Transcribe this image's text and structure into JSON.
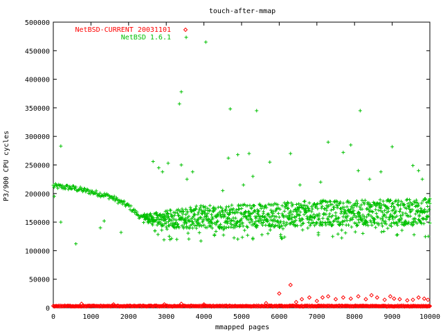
{
  "chart_data": {
    "type": "scatter",
    "title": "touch-after-mmap",
    "xlabel": "mmapped pages",
    "ylabel": "P3/900 CPU cycles",
    "xlim": [
      0,
      10000
    ],
    "ylim": [
      0,
      500000
    ],
    "x_ticks": [
      0,
      1000,
      2000,
      3000,
      4000,
      5000,
      6000,
      7000,
      8000,
      9000,
      10000
    ],
    "y_ticks": [
      0,
      50000,
      100000,
      150000,
      200000,
      250000,
      300000,
      350000,
      400000,
      450000,
      500000
    ],
    "x_tick_labels": [
      "0",
      "1000",
      "2000",
      "3000",
      "4000",
      "5000",
      "6000",
      "7000",
      "8000",
      "9000",
      "10000"
    ],
    "y_tick_labels": [
      "0",
      "50000",
      "100000",
      "150000",
      "200000",
      "250000",
      "300000",
      "350000",
      "400000",
      "450000",
      "500000"
    ],
    "grid": false,
    "legend_position": "top-left",
    "series": [
      {
        "name": "NetBSD-CURRENT 20031101",
        "color": "#ff0000",
        "marker": "diamond",
        "baseline_value": 3000,
        "baseline_x_range": [
          0,
          10000
        ],
        "points": [
          [
            750,
            7000
          ],
          [
            1600,
            6000
          ],
          [
            2950,
            6000
          ],
          [
            3400,
            7000
          ],
          [
            4000,
            6000
          ],
          [
            5650,
            8000
          ],
          [
            6000,
            25000
          ],
          [
            6300,
            40000
          ],
          [
            6450,
            10000
          ],
          [
            6600,
            15000
          ],
          [
            6800,
            18000
          ],
          [
            7000,
            12000
          ],
          [
            7150,
            18000
          ],
          [
            7300,
            20000
          ],
          [
            7500,
            15000
          ],
          [
            7700,
            18000
          ],
          [
            7900,
            16000
          ],
          [
            8100,
            20000
          ],
          [
            8300,
            15000
          ],
          [
            8450,
            22000
          ],
          [
            8600,
            18000
          ],
          [
            8800,
            14000
          ],
          [
            8950,
            20000
          ],
          [
            9050,
            16000
          ],
          [
            9200,
            15000
          ],
          [
            9400,
            13000
          ],
          [
            9550,
            14000
          ],
          [
            9700,
            18000
          ],
          [
            9850,
            16000
          ],
          [
            9950,
            14000
          ]
        ]
      },
      {
        "name": "NetBSD 1.6.1",
        "color": "#00c000",
        "marker": "plus",
        "trend": [
          [
            0,
            213000
          ],
          [
            500,
            210000
          ],
          [
            1000,
            203000
          ],
          [
            1500,
            195000
          ],
          [
            2000,
            178000
          ],
          [
            2300,
            160000
          ],
          [
            2600,
            145000
          ],
          [
            3000,
            140000
          ],
          [
            4000,
            138000
          ],
          [
            5000,
            140000
          ],
          [
            6000,
            142000
          ],
          [
            7000,
            144000
          ],
          [
            8000,
            144000
          ],
          [
            9000,
            144000
          ],
          [
            10000,
            144000
          ]
        ],
        "upper": [
          [
            2600,
            165000
          ],
          [
            3000,
            170000
          ],
          [
            4000,
            180000
          ],
          [
            5000,
            182000
          ],
          [
            6000,
            184000
          ],
          [
            7000,
            188000
          ],
          [
            8000,
            188000
          ],
          [
            9000,
            190000
          ],
          [
            10000,
            192000
          ]
        ],
        "outliers": [
          [
            25,
            195000
          ],
          [
            200,
            283000
          ],
          [
            200,
            150000
          ],
          [
            600,
            112000
          ],
          [
            1250,
            140000
          ],
          [
            1350,
            152000
          ],
          [
            1800,
            132000
          ],
          [
            2650,
            256000
          ],
          [
            2800,
            245000
          ],
          [
            2900,
            238000
          ],
          [
            3050,
            253000
          ],
          [
            3350,
            357000
          ],
          [
            3400,
            378000
          ],
          [
            3400,
            250000
          ],
          [
            3550,
            225000
          ],
          [
            3700,
            238000
          ],
          [
            4050,
            465000
          ],
          [
            4700,
            348000
          ],
          [
            4650,
            262000
          ],
          [
            4900,
            268000
          ],
          [
            5200,
            270000
          ],
          [
            5400,
            345000
          ],
          [
            5750,
            255000
          ],
          [
            6300,
            270000
          ],
          [
            7300,
            290000
          ],
          [
            7700,
            272000
          ],
          [
            7900,
            285000
          ],
          [
            8100,
            240000
          ],
          [
            8150,
            345000
          ],
          [
            8700,
            238000
          ],
          [
            9000,
            282000
          ],
          [
            9550,
            249000
          ],
          [
            9700,
            240000
          ],
          [
            9800,
            225000
          ],
          [
            4500,
            205000
          ],
          [
            5050,
            215000
          ],
          [
            5300,
            230000
          ],
          [
            6550,
            215000
          ],
          [
            7100,
            220000
          ],
          [
            8400,
            225000
          ]
        ]
      }
    ]
  }
}
